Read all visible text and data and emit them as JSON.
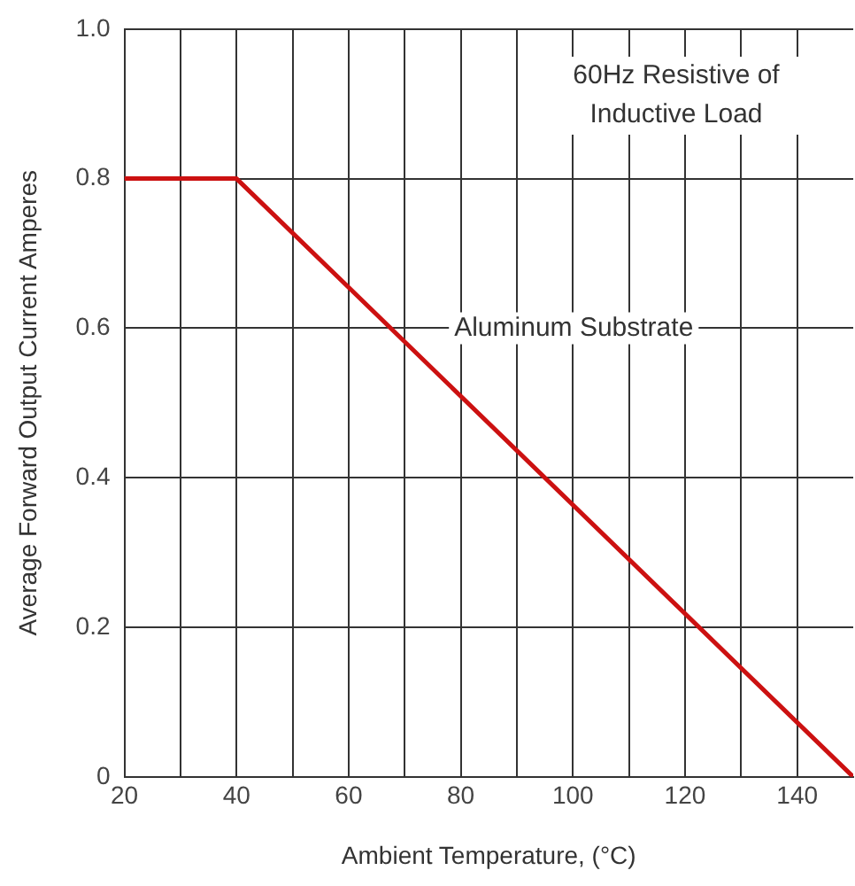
{
  "chart_data": {
    "type": "line",
    "xlabel": "Ambient Temperature, (°C)",
    "ylabel": "Average Forward Output Current Amperes",
    "x": [
      20,
      40,
      150
    ],
    "series": [
      {
        "color": "#cc1111",
        "values": [
          0.8,
          0.8,
          0
        ]
      }
    ],
    "xlim": [
      20,
      150
    ],
    "xticks": [
      20,
      {
        "value": 30,
        "label": null
      },
      40,
      {
        "value": 50,
        "label": null
      },
      60,
      {
        "value": 70,
        "label": null
      },
      80,
      {
        "value": 90,
        "label": null
      },
      100,
      {
        "value": 110,
        "label": null
      },
      120,
      {
        "value": 130,
        "label": null
      },
      140
    ],
    "ylim": [
      0,
      1
    ],
    "yticks": [
      0,
      0.2,
      0.4,
      0.6,
      0.8,
      {
        "value": 1,
        "label": "1.0"
      }
    ],
    "grid": true,
    "legend": false,
    "marker": "none",
    "line_style": "solid",
    "annotations": [
      "60Hz Resistive of Inductive Load",
      "Aluminum Substrate"
    ]
  }
}
